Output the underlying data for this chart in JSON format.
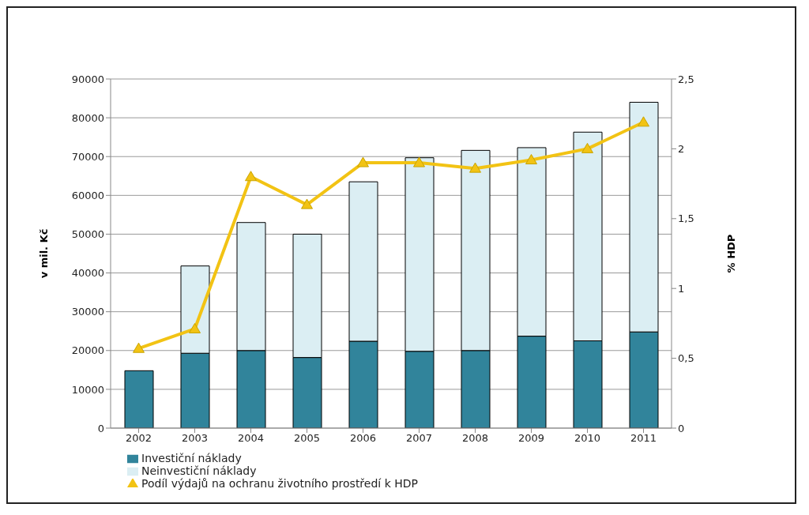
{
  "chart_data": {
    "type": "bar",
    "stacked": true,
    "categories": [
      "2002",
      "2003",
      "2004",
      "2005",
      "2006",
      "2007",
      "2008",
      "2009",
      "2010",
      "2011"
    ],
    "series": [
      {
        "name": "Investiční náklady",
        "color": "#31849b",
        "values": [
          14800,
          19300,
          20000,
          18200,
          22400,
          19800,
          20000,
          23700,
          22500,
          24800
        ]
      },
      {
        "name": "Neinvestiční náklady",
        "color": "#dbeef3",
        "values": [
          null,
          22500,
          33000,
          31800,
          41100,
          49900,
          51600,
          48600,
          53800,
          59200
        ]
      },
      {
        "name": "Podíl výdajů na ochranu životního prostředí k HDP",
        "type": "line",
        "axis": "y2",
        "color": "#f2c314",
        "marker": "triangle",
        "values": [
          0.57,
          0.71,
          1.8,
          1.6,
          1.9,
          1.9,
          1.86,
          1.92,
          2.0,
          2.19
        ]
      }
    ],
    "ylabel": "v mil. Kč",
    "y2label": "% HDP",
    "ylim": [
      0,
      90000
    ],
    "yticks": [
      0,
      10000,
      20000,
      30000,
      40000,
      50000,
      60000,
      70000,
      80000,
      90000
    ],
    "y2lim": [
      0,
      2.5
    ],
    "y2ticks": [
      0,
      {
        "value": 0.5,
        "label": "0,5"
      },
      1,
      {
        "value": 1.5,
        "label": "1,5"
      },
      2,
      {
        "value": 2.5,
        "label": "2,5"
      }
    ],
    "grid": "y",
    "legend": "bottom"
  }
}
